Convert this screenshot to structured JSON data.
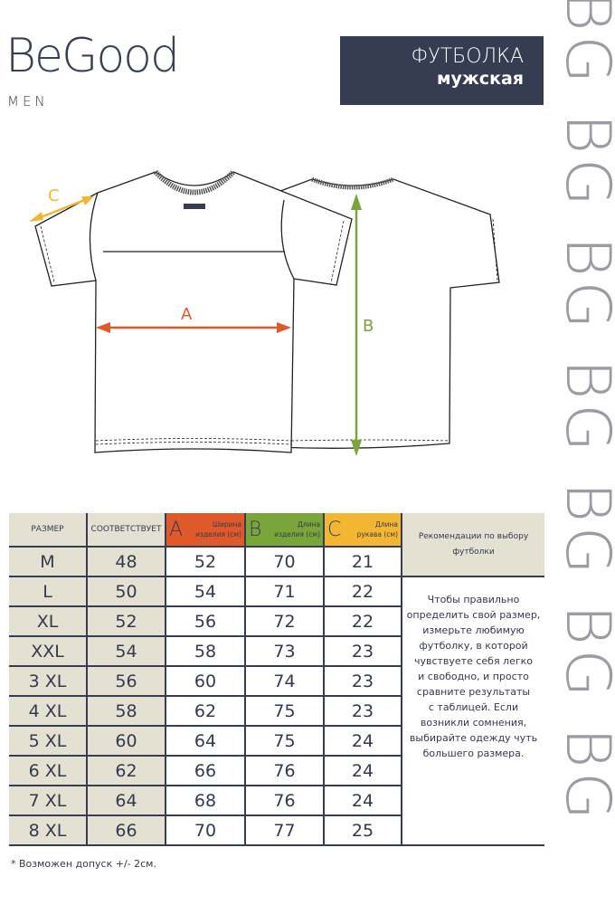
{
  "brand": {
    "name": "BeGood",
    "sub": "MEN",
    "watermark": "BG BG BG BG BG BG BG"
  },
  "title": {
    "main": "ФУТБОЛКА",
    "sub": "мужская"
  },
  "diagram": {
    "labels": {
      "a": "A",
      "b": "B",
      "c": "C"
    },
    "colors": {
      "a": "#e0592b",
      "b": "#7aa53a",
      "c": "#f2b632"
    }
  },
  "table": {
    "headers": {
      "size": "РАЗМЕР",
      "corresponds": "СООТВЕТСТВУЕТ",
      "a": {
        "letter": "A",
        "label1": "Ширина",
        "label2": "изделия (см)"
      },
      "b": {
        "letter": "B",
        "label1": "Длина",
        "label2": "изделия (см)"
      },
      "c": {
        "letter": "C",
        "label1": "Длина",
        "label2": "рукава (см)"
      },
      "recommend": "Рекомендации по выбору футболки"
    },
    "rows": [
      [
        "M",
        "48",
        "52",
        "70",
        "21"
      ],
      [
        "L",
        "50",
        "54",
        "71",
        "22"
      ],
      [
        "XL",
        "52",
        "56",
        "72",
        "22"
      ],
      [
        "XXL",
        "54",
        "58",
        "73",
        "23"
      ],
      [
        "3 XL",
        "56",
        "60",
        "74",
        "23"
      ],
      [
        "4 XL",
        "58",
        "62",
        "75",
        "23"
      ],
      [
        "5 XL",
        "60",
        "64",
        "75",
        "24"
      ],
      [
        "6 XL",
        "62",
        "66",
        "76",
        "24"
      ],
      [
        "7 XL",
        "64",
        "68",
        "76",
        "24"
      ],
      [
        "8 XL",
        "66",
        "70",
        "77",
        "25"
      ]
    ],
    "recommendation": "Чтобы правильно\nопределить свой размер,\nизмерьте любимую\nфутболку, в которой\nчувствуете себя легко\nи свободно, и просто\nсравните результаты\nс таблицей. Если\nвозникли сомнения,\nвыбирайте одежду чуть\nбольшего размера."
  },
  "footnote": "* Возможен допуск +/- 2см."
}
